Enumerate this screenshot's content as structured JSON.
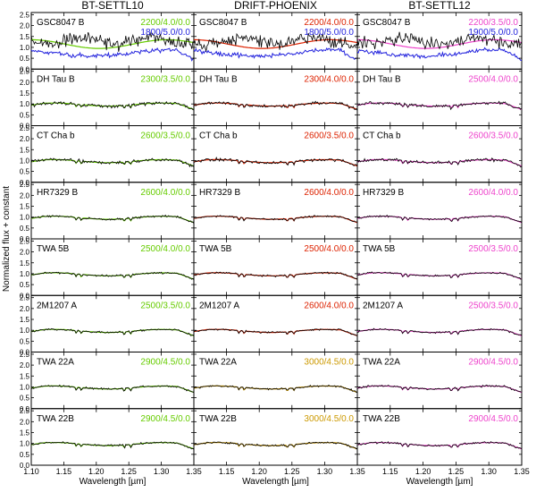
{
  "chart_data": {
    "type": "line",
    "panel_columns": [
      "BT-SETTL10",
      "DRIFT-PHOENIX",
      "BT-SETTL12"
    ],
    "model_colors": [
      "#66cc00",
      "#dd2200",
      "#ee44cc"
    ],
    "alt_colors": {
      "blue": "#2222dd",
      "orange": "#cc9900"
    },
    "observed_color": "#000000",
    "objects": [
      "GSC8047 B",
      "DH Tau B",
      "CT Cha b",
      "HR7329 B",
      "TWA 5B",
      "2M1207 A",
      "TWA 22A",
      "TWA 22B"
    ],
    "model_labels": [
      [
        [
          "2200/4.0/0.0",
          "1800/5.0/0.0"
        ],
        [
          "2300/3.5/0.0"
        ],
        [
          "2600/3.5/0.0"
        ],
        [
          "2600/4.0/0.0"
        ],
        [
          "2500/4.0/0.0"
        ],
        [
          "2500/3.5/0.0"
        ],
        [
          "2900/4.5/0.0"
        ],
        [
          "2900/4.5/0.0"
        ]
      ],
      [
        [
          "2200/4.0/0.0",
          "1800/5.0/0.0"
        ],
        [
          "2300/4.0/0.0"
        ],
        [
          "2600/3.5/0.0"
        ],
        [
          "2600/4.0/0.0"
        ],
        [
          "2500/4.0/0.0"
        ],
        [
          "2600/4.0/0.0"
        ],
        [
          "3000/4.5/0.0"
        ],
        [
          "3000/4.5/0.0"
        ]
      ],
      [
        [
          "2200/3.5/0.0",
          "1900/5.0/0.0"
        ],
        [
          "2500/4.0/0.0"
        ],
        [
          "2600/3.5/0.0"
        ],
        [
          "2600/4.0/0.0"
        ],
        [
          "2500/3.5/0.0"
        ],
        [
          "2500/3.5/0.0"
        ],
        [
          "2900/4.5/0.0"
        ],
        [
          "2900/4.5/0.0"
        ]
      ]
    ],
    "label_color_keys": [
      [
        [
          "model",
          "blue"
        ],
        [
          "model"
        ],
        [
          "model"
        ],
        [
          "model"
        ],
        [
          "model"
        ],
        [
          "model"
        ],
        [
          "model"
        ],
        [
          "model"
        ]
      ],
      [
        [
          "model",
          "blue"
        ],
        [
          "model"
        ],
        [
          "model"
        ],
        [
          "model"
        ],
        [
          "model"
        ],
        [
          "model"
        ],
        [
          "orange"
        ],
        [
          "orange"
        ]
      ],
      [
        [
          "model",
          "blue"
        ],
        [
          "model"
        ],
        [
          "model"
        ],
        [
          "model"
        ],
        [
          "model"
        ],
        [
          "model"
        ],
        [
          "model"
        ],
        [
          "model"
        ]
      ]
    ],
    "xlabel": "Wavelength [µm]",
    "ylabel": "Normalized flux + constant",
    "xlim": [
      1.1,
      1.35
    ],
    "ylim": [
      0.0,
      2.6
    ],
    "xticks": [
      "1.10",
      "1.15",
      "1.20",
      "1.25",
      "1.30",
      "1.35"
    ],
    "yticks": [
      "0.0",
      "0.5",
      "1.0",
      "1.5",
      "2.0",
      "2.5"
    ],
    "grid": false,
    "legend": "none"
  }
}
